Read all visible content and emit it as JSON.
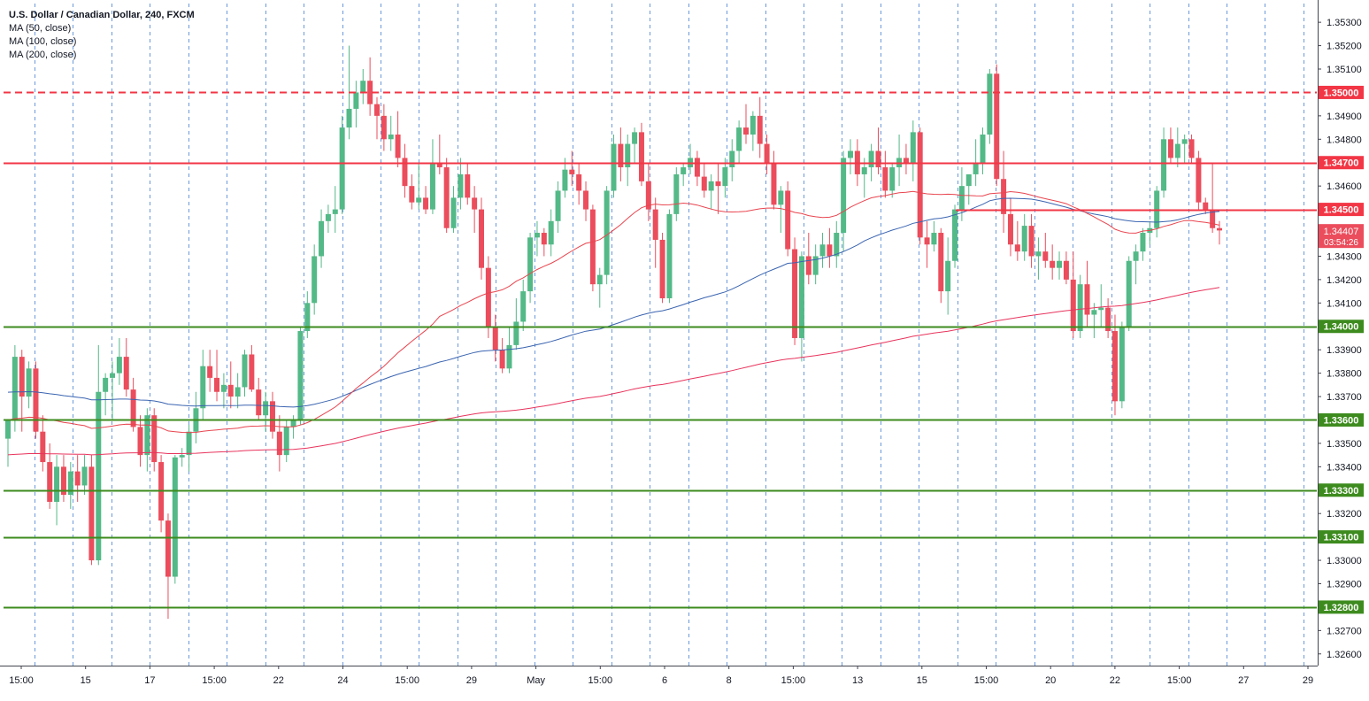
{
  "chart_data": {
    "type": "candlestick",
    "title": "U.S. Dollar / Canadian Dollar, 240, FXCM",
    "indicators": [
      "MA (50, close)",
      "MA (100, close)",
      "MA (200, close)"
    ],
    "price_axis": {
      "range": [
        1.3255,
        1.3538
      ],
      "ticks": [
        "1.35300",
        "1.35200",
        "1.35100",
        "1.34900",
        "1.34800",
        "1.34600",
        "1.34300",
        "1.34200",
        "1.34100",
        "1.33900",
        "1.33800",
        "1.33700",
        "1.33500",
        "1.33400",
        "1.33200",
        "1.33000",
        "1.32900",
        "1.32700",
        "1.32600"
      ]
    },
    "time_axis": {
      "labels": [
        "15:00",
        "15",
        "17",
        "15:00",
        "22",
        "24",
        "15:00",
        "29",
        "May",
        "15:00",
        "6",
        "8",
        "15:00",
        "13",
        "15",
        "15:00",
        "20",
        "22",
        "15:00",
        "27",
        "29"
      ]
    },
    "levels": [
      {
        "price": 1.35,
        "label": "1.35000",
        "color": "#f23645",
        "style": "dashed"
      },
      {
        "price": 1.347,
        "label": "1.34700",
        "color": "#f23645",
        "style": "solid"
      },
      {
        "price": 1.345,
        "label": "1.34500",
        "color": "#f23645",
        "style": "solid",
        "partial": true
      },
      {
        "price": 1.34,
        "label": "1.34000",
        "color": "#3d8b1e",
        "style": "solid"
      },
      {
        "price": 1.336,
        "label": "1.33600",
        "color": "#3d8b1e",
        "style": "solid"
      },
      {
        "price": 1.333,
        "label": "1.33300",
        "color": "#3d8b1e",
        "style": "solid"
      },
      {
        "price": 1.331,
        "label": "1.33100",
        "color": "#3d8b1e",
        "style": "solid"
      },
      {
        "price": 1.328,
        "label": "1.32800",
        "color": "#3d8b1e",
        "style": "solid"
      }
    ],
    "current_price": {
      "label": "1.34407",
      "countdown": "03:54:26",
      "price": 1.34407
    },
    "colors": {
      "up": "#53b987",
      "down": "#eb4d5c",
      "ma50": "#e8454f",
      "ma100": "#3a64b0",
      "ma200": "#e8345d",
      "session_grid": "#5b8fd6"
    },
    "candles_ohlc": [
      [
        1.3352,
        1.336,
        1.334,
        1.336
      ],
      [
        1.336,
        1.3392,
        1.3355,
        1.3387
      ],
      [
        1.3387,
        1.339,
        1.3355,
        1.337
      ],
      [
        1.337,
        1.3385,
        1.3365,
        1.3382
      ],
      [
        1.3382,
        1.3385,
        1.3352,
        1.3355
      ],
      [
        1.3355,
        1.3362,
        1.3338,
        1.3342
      ],
      [
        1.3342,
        1.335,
        1.3322,
        1.3325
      ],
      [
        1.3325,
        1.3345,
        1.3315,
        1.334
      ],
      [
        1.334,
        1.3345,
        1.3325,
        1.3328
      ],
      [
        1.3328,
        1.3342,
        1.3322,
        1.3338
      ],
      [
        1.3338,
        1.3345,
        1.3325,
        1.3332
      ],
      [
        1.3332,
        1.3345,
        1.3328,
        1.334
      ],
      [
        1.334,
        1.3345,
        1.3298,
        1.33
      ],
      [
        1.33,
        1.3392,
        1.3298,
        1.3372
      ],
      [
        1.3372,
        1.338,
        1.3362,
        1.3378
      ],
      [
        1.3378,
        1.3385,
        1.336,
        1.338
      ],
      [
        1.338,
        1.3395,
        1.3375,
        1.3387
      ],
      [
        1.3387,
        1.3395,
        1.337,
        1.3373
      ],
      [
        1.3373,
        1.3378,
        1.3355,
        1.3357
      ],
      [
        1.3357,
        1.3362,
        1.334,
        1.3345
      ],
      [
        1.3345,
        1.3365,
        1.3338,
        1.3362
      ],
      [
        1.3362,
        1.3365,
        1.3338,
        1.3342
      ],
      [
        1.3342,
        1.3345,
        1.3312,
        1.3317
      ],
      [
        1.3317,
        1.332,
        1.3275,
        1.3293
      ],
      [
        1.3293,
        1.3345,
        1.329,
        1.3344
      ],
      [
        1.3344,
        1.3348,
        1.334,
        1.3345
      ],
      [
        1.3345,
        1.3358,
        1.3338,
        1.3355
      ],
      [
        1.3355,
        1.3372,
        1.335,
        1.3365
      ],
      [
        1.3365,
        1.339,
        1.336,
        1.3383
      ],
      [
        1.3383,
        1.339,
        1.3372,
        1.3378
      ],
      [
        1.3378,
        1.339,
        1.3368,
        1.3372
      ],
      [
        1.3372,
        1.338,
        1.3365,
        1.3375
      ],
      [
        1.3375,
        1.3385,
        1.3365,
        1.337
      ],
      [
        1.337,
        1.338,
        1.3365,
        1.3374
      ],
      [
        1.3374,
        1.339,
        1.337,
        1.3388
      ],
      [
        1.3388,
        1.3392,
        1.3372,
        1.3373
      ],
      [
        1.3373,
        1.3378,
        1.336,
        1.3362
      ],
      [
        1.3362,
        1.3372,
        1.3355,
        1.3368
      ],
      [
        1.3368,
        1.3372,
        1.3352,
        1.3355
      ],
      [
        1.3355,
        1.3362,
        1.3338,
        1.3345
      ],
      [
        1.3345,
        1.336,
        1.3342,
        1.3357
      ],
      [
        1.3357,
        1.3362,
        1.3352,
        1.336
      ],
      [
        1.336,
        1.34,
        1.3358,
        1.3398
      ],
      [
        1.3398,
        1.3415,
        1.3395,
        1.341
      ],
      [
        1.341,
        1.3435,
        1.3405,
        1.343
      ],
      [
        1.343,
        1.345,
        1.3425,
        1.3445
      ],
      [
        1.3445,
        1.3452,
        1.344,
        1.3448
      ],
      [
        1.3448,
        1.346,
        1.344,
        1.345
      ],
      [
        1.345,
        1.349,
        1.3448,
        1.3485
      ],
      [
        1.3485,
        1.352,
        1.348,
        1.3493
      ],
      [
        1.3493,
        1.3505,
        1.3485,
        1.35
      ],
      [
        1.35,
        1.351,
        1.3495,
        1.3505
      ],
      [
        1.3505,
        1.3515,
        1.349,
        1.3495
      ],
      [
        1.3495,
        1.3498,
        1.348,
        1.349
      ],
      [
        1.349,
        1.3495,
        1.3475,
        1.348
      ],
      [
        1.348,
        1.349,
        1.3475,
        1.3482
      ],
      [
        1.3482,
        1.3492,
        1.3468,
        1.3472
      ],
      [
        1.3472,
        1.3478,
        1.3455,
        1.346
      ],
      [
        1.346,
        1.3465,
        1.345,
        1.3453
      ],
      [
        1.3453,
        1.347,
        1.345,
        1.3455
      ],
      [
        1.3455,
        1.346,
        1.3448,
        1.345
      ],
      [
        1.345,
        1.348,
        1.3448,
        1.347
      ],
      [
        1.347,
        1.3482,
        1.3465,
        1.3468
      ],
      [
        1.3468,
        1.3472,
        1.344,
        1.3442
      ],
      [
        1.3442,
        1.346,
        1.344,
        1.3455
      ],
      [
        1.3455,
        1.3472,
        1.345,
        1.3465
      ],
      [
        1.3465,
        1.347,
        1.3452,
        1.3455
      ],
      [
        1.3455,
        1.346,
        1.344,
        1.345
      ],
      [
        1.345,
        1.3455,
        1.342,
        1.3425
      ],
      [
        1.3425,
        1.343,
        1.3395,
        1.34
      ],
      [
        1.34,
        1.3405,
        1.3385,
        1.339
      ],
      [
        1.339,
        1.3395,
        1.338,
        1.3382
      ],
      [
        1.3382,
        1.34,
        1.338,
        1.3392
      ],
      [
        1.3392,
        1.3412,
        1.339,
        1.3402
      ],
      [
        1.3402,
        1.342,
        1.3398,
        1.3415
      ],
      [
        1.3415,
        1.344,
        1.341,
        1.3438
      ],
      [
        1.3438,
        1.3445,
        1.343,
        1.344
      ],
      [
        1.344,
        1.3442,
        1.343,
        1.3435
      ],
      [
        1.3435,
        1.345,
        1.343,
        1.3445
      ],
      [
        1.3445,
        1.3462,
        1.344,
        1.3458
      ],
      [
        1.3458,
        1.3472,
        1.3455,
        1.3467
      ],
      [
        1.3467,
        1.3475,
        1.346,
        1.3465
      ],
      [
        1.3465,
        1.347,
        1.3452,
        1.3458
      ],
      [
        1.3458,
        1.3462,
        1.3445,
        1.345
      ],
      [
        1.345,
        1.3452,
        1.3415,
        1.3418
      ],
      [
        1.3418,
        1.3425,
        1.3408,
        1.3422
      ],
      [
        1.3422,
        1.346,
        1.3418,
        1.3458
      ],
      [
        1.3458,
        1.3482,
        1.3455,
        1.3478
      ],
      [
        1.3478,
        1.3485,
        1.3462,
        1.3468
      ],
      [
        1.3468,
        1.3482,
        1.346,
        1.3478
      ],
      [
        1.3478,
        1.3485,
        1.347,
        1.3483
      ],
      [
        1.3483,
        1.3487,
        1.346,
        1.3462
      ],
      [
        1.3462,
        1.347,
        1.3445,
        1.345
      ],
      [
        1.345,
        1.3455,
        1.3425,
        1.3437
      ],
      [
        1.3437,
        1.344,
        1.341,
        1.3412
      ],
      [
        1.3412,
        1.345,
        1.341,
        1.3448
      ],
      [
        1.3448,
        1.3468,
        1.3445,
        1.3465
      ],
      [
        1.3465,
        1.347,
        1.346,
        1.3468
      ],
      [
        1.3468,
        1.3478,
        1.3465,
        1.3472
      ],
      [
        1.3472,
        1.3475,
        1.346,
        1.3464
      ],
      [
        1.3464,
        1.347,
        1.3455,
        1.3458
      ],
      [
        1.3458,
        1.3465,
        1.345,
        1.3462
      ],
      [
        1.3462,
        1.347,
        1.3448,
        1.346
      ],
      [
        1.346,
        1.3472,
        1.3455,
        1.3468
      ],
      [
        1.3468,
        1.348,
        1.3462,
        1.3475
      ],
      [
        1.3475,
        1.3488,
        1.347,
        1.3485
      ],
      [
        1.3485,
        1.3495,
        1.3478,
        1.3482
      ],
      [
        1.3482,
        1.3492,
        1.3475,
        1.349
      ],
      [
        1.349,
        1.3498,
        1.3472,
        1.3478
      ],
      [
        1.3478,
        1.3482,
        1.3465,
        1.347
      ],
      [
        1.347,
        1.3475,
        1.345,
        1.3452
      ],
      [
        1.3452,
        1.346,
        1.344,
        1.3458
      ],
      [
        1.3458,
        1.3462,
        1.343,
        1.3433
      ],
      [
        1.3433,
        1.3438,
        1.3392,
        1.3395
      ],
      [
        1.3395,
        1.3432,
        1.3385,
        1.343
      ],
      [
        1.343,
        1.344,
        1.3418,
        1.3422
      ],
      [
        1.3422,
        1.3435,
        1.3418,
        1.343
      ],
      [
        1.343,
        1.344,
        1.3425,
        1.3435
      ],
      [
        1.3435,
        1.3442,
        1.3425,
        1.343
      ],
      [
        1.343,
        1.3445,
        1.3425,
        1.344
      ],
      [
        1.344,
        1.3475,
        1.3432,
        1.3472
      ],
      [
        1.3472,
        1.348,
        1.3465,
        1.3475
      ],
      [
        1.3475,
        1.348,
        1.346,
        1.3465
      ],
      [
        1.3465,
        1.3472,
        1.3455,
        1.3468
      ],
      [
        1.3468,
        1.3478,
        1.3462,
        1.3475
      ],
      [
        1.3475,
        1.3485,
        1.3465,
        1.3468
      ],
      [
        1.3468,
        1.3475,
        1.3455,
        1.3458
      ],
      [
        1.3458,
        1.347,
        1.3455,
        1.3468
      ],
      [
        1.3468,
        1.3482,
        1.346,
        1.3472
      ],
      [
        1.3472,
        1.3478,
        1.3465,
        1.347
      ],
      [
        1.347,
        1.3488,
        1.3462,
        1.3483
      ],
      [
        1.3483,
        1.3485,
        1.3435,
        1.3438
      ],
      [
        1.3438,
        1.3445,
        1.3425,
        1.3435
      ],
      [
        1.3435,
        1.3445,
        1.3432,
        1.344
      ],
      [
        1.344,
        1.3442,
        1.341,
        1.3415
      ],
      [
        1.3415,
        1.3438,
        1.3405,
        1.3428
      ],
      [
        1.3428,
        1.3452,
        1.3425,
        1.345
      ],
      [
        1.345,
        1.3468,
        1.3445,
        1.346
      ],
      [
        1.346,
        1.3465,
        1.3452,
        1.3465
      ],
      [
        1.3465,
        1.348,
        1.346,
        1.347
      ],
      [
        1.347,
        1.3485,
        1.3465,
        1.3482
      ],
      [
        1.3482,
        1.351,
        1.3478,
        1.3508
      ],
      [
        1.3508,
        1.3512,
        1.346,
        1.3463
      ],
      [
        1.3463,
        1.3475,
        1.344,
        1.3448
      ],
      [
        1.3448,
        1.3455,
        1.343,
        1.3435
      ],
      [
        1.3435,
        1.3445,
        1.3428,
        1.3432
      ],
      [
        1.3432,
        1.3448,
        1.3428,
        1.3443
      ],
      [
        1.3443,
        1.3448,
        1.3425,
        1.343
      ],
      [
        1.343,
        1.3438,
        1.342,
        1.3432
      ],
      [
        1.3432,
        1.344,
        1.3425,
        1.3428
      ],
      [
        1.3428,
        1.3435,
        1.342,
        1.3425
      ],
      [
        1.3425,
        1.3432,
        1.342,
        1.3428
      ],
      [
        1.3428,
        1.3432,
        1.3418,
        1.342
      ],
      [
        1.342,
        1.3432,
        1.3395,
        1.3398
      ],
      [
        1.3398,
        1.3422,
        1.3395,
        1.3418
      ],
      [
        1.3418,
        1.3428,
        1.34,
        1.3405
      ],
      [
        1.3405,
        1.341,
        1.3395,
        1.3407
      ],
      [
        1.3407,
        1.3418,
        1.34,
        1.3408
      ],
      [
        1.3408,
        1.3412,
        1.3395,
        1.3398
      ],
      [
        1.3398,
        1.3405,
        1.3362,
        1.3368
      ],
      [
        1.3368,
        1.3402,
        1.3365,
        1.34
      ],
      [
        1.34,
        1.343,
        1.3398,
        1.3428
      ],
      [
        1.3428,
        1.3435,
        1.3418,
        1.3432
      ],
      [
        1.3432,
        1.3442,
        1.3428,
        1.344
      ],
      [
        1.344,
        1.3445,
        1.3435,
        1.3442
      ],
      [
        1.3442,
        1.346,
        1.3438,
        1.3458
      ],
      [
        1.3458,
        1.3485,
        1.3455,
        1.348
      ],
      [
        1.348,
        1.3485,
        1.347,
        1.3472
      ],
      [
        1.3472,
        1.3485,
        1.3468,
        1.3478
      ],
      [
        1.3478,
        1.3482,
        1.347,
        1.348
      ],
      [
        1.348,
        1.3482,
        1.347,
        1.3472
      ],
      [
        1.3472,
        1.3475,
        1.345,
        1.3453
      ],
      [
        1.3453,
        1.3455,
        1.3448,
        1.345
      ],
      [
        1.345,
        1.347,
        1.344,
        1.3442
      ],
      [
        1.3442,
        1.3445,
        1.3435,
        1.3441
      ]
    ]
  }
}
